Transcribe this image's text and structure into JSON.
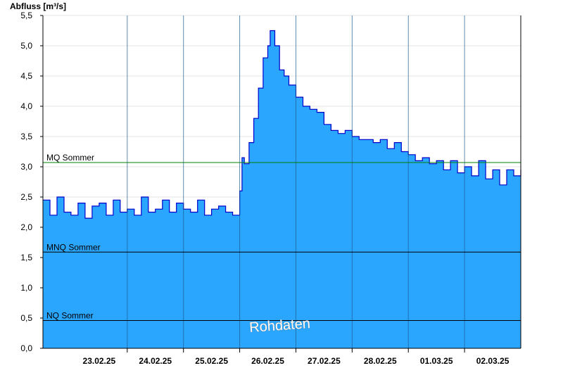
{
  "chart_data": {
    "type": "area",
    "ylabel": "Abfluss [m³/s]",
    "watermark": "Rohdaten",
    "ylim": [
      0,
      5.5
    ],
    "yticks": [
      "0,0",
      "0,5",
      "1,0",
      "1,5",
      "2,0",
      "2,5",
      "3,0",
      "3,5",
      "4,0",
      "4,5",
      "5,0",
      "5,5"
    ],
    "xlim": [
      "2025-02-22T12:00",
      "2025-03-03T00:00"
    ],
    "date_labels": [
      "23.02.25",
      "24.02.25",
      "25.02.25",
      "26.02.25",
      "27.02.25",
      "28.02.25",
      "01.03.25",
      "02.03.25"
    ],
    "grid": true,
    "fill_color": "#2ba6ff",
    "line_color": "#0000cc",
    "reference_lines": [
      {
        "label": "MQ Sommer",
        "value": 3.07,
        "color": "#008000"
      },
      {
        "label": "MNQ Sommer",
        "value": 1.59,
        "color": "#000000"
      },
      {
        "label": "NQ Sommer",
        "value": 0.46,
        "color": "#000000"
      }
    ],
    "series": [
      {
        "x": [
          "2025-02-22T12:00",
          "2025-02-22T15:00",
          "2025-02-22T18:00",
          "2025-02-22T21:00",
          "2025-02-23T00:00",
          "2025-02-23T03:00",
          "2025-02-23T06:00",
          "2025-02-23T09:00",
          "2025-02-23T12:00",
          "2025-02-23T15:00",
          "2025-02-23T18:00",
          "2025-02-23T21:00",
          "2025-02-24T00:00",
          "2025-02-24T03:00",
          "2025-02-24T06:00",
          "2025-02-24T09:00",
          "2025-02-24T12:00",
          "2025-02-24T15:00",
          "2025-02-24T18:00",
          "2025-02-24T21:00",
          "2025-02-25T00:00",
          "2025-02-25T03:00",
          "2025-02-25T06:00",
          "2025-02-25T09:00",
          "2025-02-25T12:00",
          "2025-02-25T15:00",
          "2025-02-25T18:00",
          "2025-02-25T21:00",
          "2025-02-25T22:30",
          "2025-02-26T00:00",
          "2025-02-26T01:00",
          "2025-02-26T02:00",
          "2025-02-26T04:00",
          "2025-02-26T06:00",
          "2025-02-26T08:00",
          "2025-02-26T10:00",
          "2025-02-26T12:00",
          "2025-02-26T13:00",
          "2025-02-26T15:00",
          "2025-02-26T17:00",
          "2025-02-26T19:00",
          "2025-02-26T21:00",
          "2025-02-27T00:00",
          "2025-02-27T03:00",
          "2025-02-27T06:00",
          "2025-02-27T09:00",
          "2025-02-27T12:00",
          "2025-02-27T15:00",
          "2025-02-27T18:00",
          "2025-02-27T21:00",
          "2025-02-28T00:00",
          "2025-02-28T03:00",
          "2025-02-28T06:00",
          "2025-02-28T09:00",
          "2025-02-28T12:00",
          "2025-02-28T15:00",
          "2025-02-28T18:00",
          "2025-02-28T21:00",
          "2025-03-01T00:00",
          "2025-03-01T03:00",
          "2025-03-01T06:00",
          "2025-03-01T09:00",
          "2025-03-01T12:00",
          "2025-03-01T15:00",
          "2025-03-01T18:00",
          "2025-03-01T21:00",
          "2025-03-02T00:00",
          "2025-03-02T03:00",
          "2025-03-02T06:00",
          "2025-03-02T09:00",
          "2025-03-02T12:00",
          "2025-03-02T15:00",
          "2025-03-02T18:00",
          "2025-03-02T21:00",
          "2025-03-03T00:00"
        ],
        "values": [
          2.45,
          2.2,
          2.5,
          2.25,
          2.2,
          2.4,
          2.15,
          2.35,
          2.4,
          2.2,
          2.45,
          2.25,
          2.3,
          2.2,
          2.5,
          2.25,
          2.3,
          2.45,
          2.25,
          2.4,
          2.3,
          2.25,
          2.45,
          2.2,
          2.3,
          2.35,
          2.25,
          2.2,
          2.2,
          2.6,
          3.15,
          3.05,
          3.4,
          3.8,
          4.3,
          4.8,
          5.0,
          5.25,
          5.0,
          4.6,
          4.5,
          4.35,
          4.15,
          4.0,
          3.95,
          3.9,
          3.7,
          3.6,
          3.55,
          3.6,
          3.5,
          3.45,
          3.45,
          3.4,
          3.45,
          3.3,
          3.4,
          3.25,
          3.2,
          3.1,
          3.15,
          3.05,
          3.1,
          2.95,
          3.1,
          2.9,
          3.0,
          2.85,
          3.1,
          2.8,
          2.95,
          2.7,
          2.95,
          2.85,
          2.95
        ]
      }
    ]
  }
}
